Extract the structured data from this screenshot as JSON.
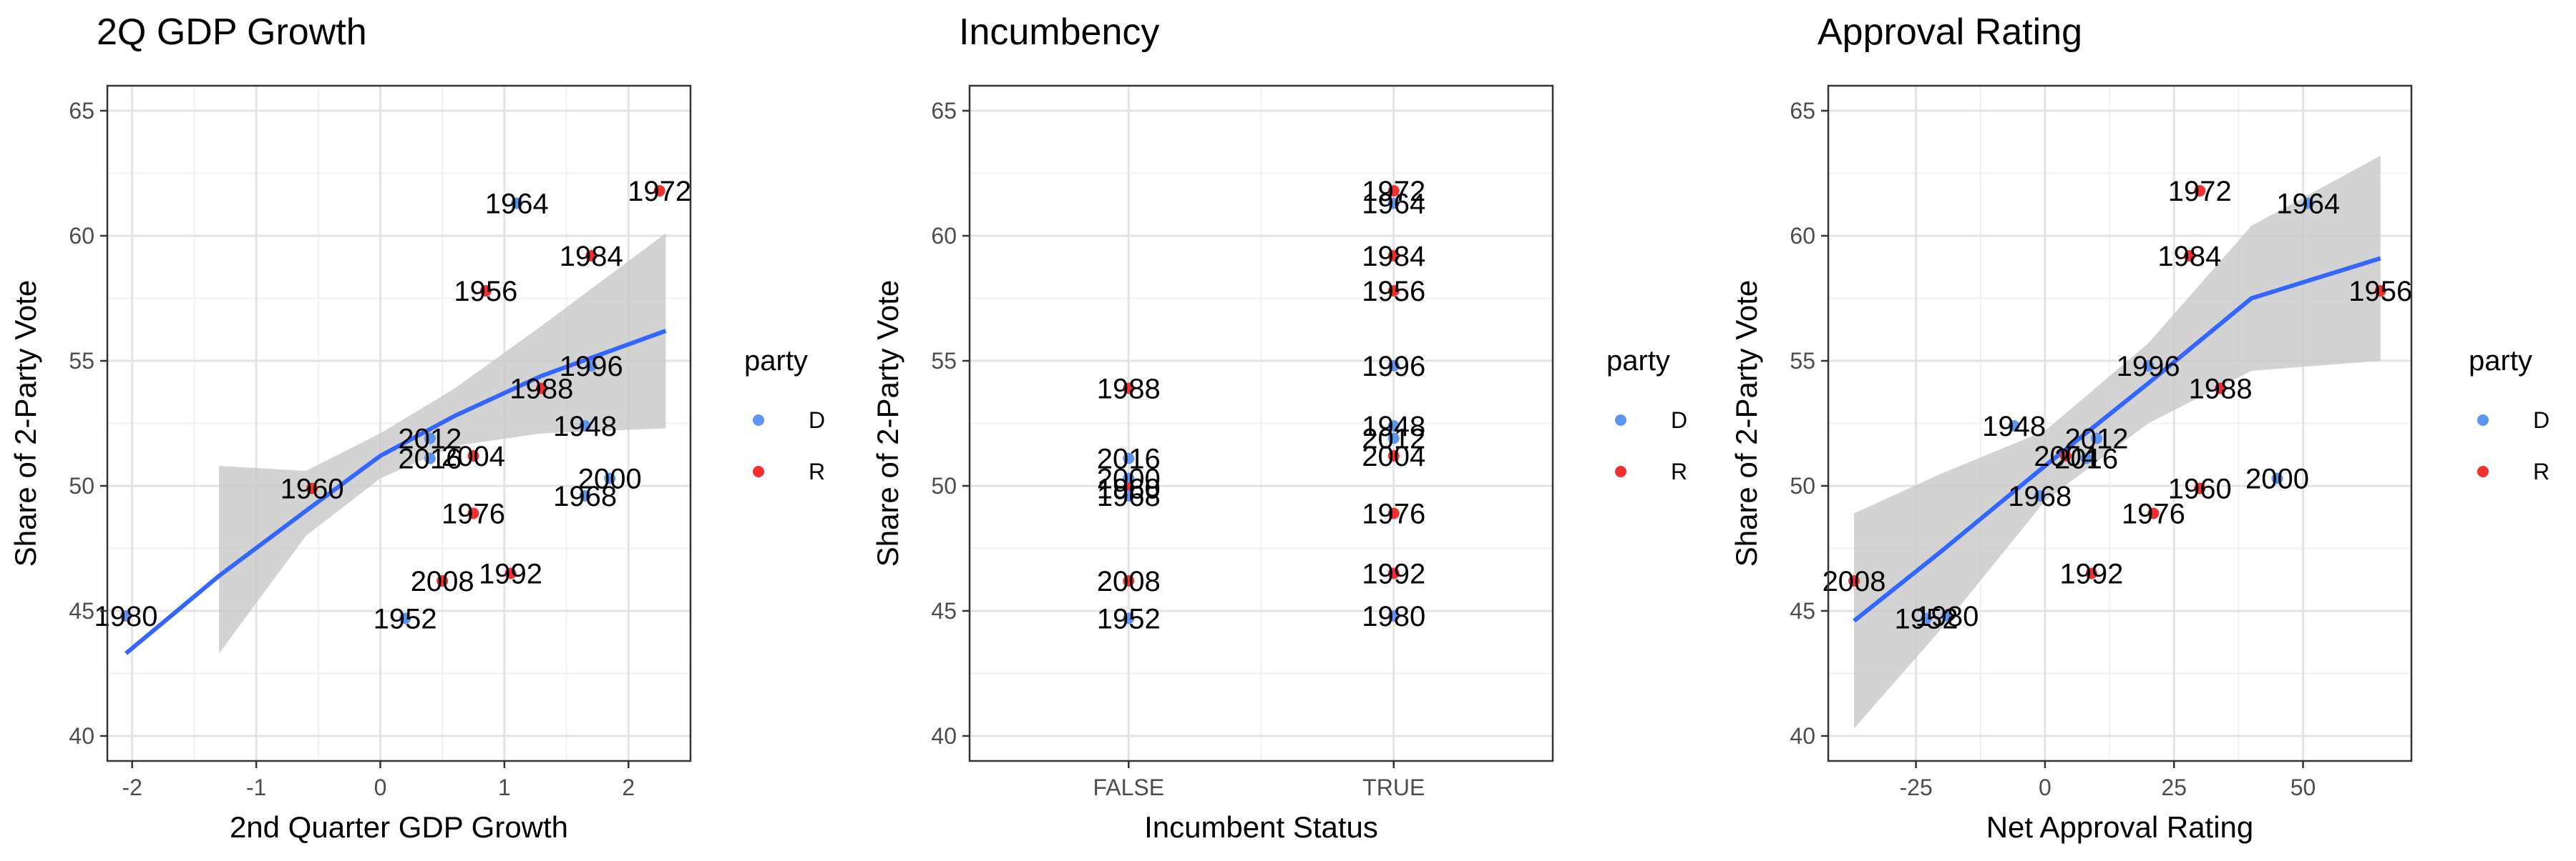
{
  "colors": {
    "D": "#5b95f0",
    "R": "#f23030",
    "fit": "#3366ff",
    "band": "#c8c8c8",
    "grid_major": "#e3e3e3",
    "grid_minor": "#f1f1f1"
  },
  "legend": {
    "title": "party",
    "items": [
      {
        "key": "D",
        "label": "D"
      },
      {
        "key": "R",
        "label": "R"
      }
    ]
  },
  "chart_data": [
    {
      "type": "scatter",
      "title": "2Q GDP Growth",
      "xlabel": "2nd Quarter GDP Growth",
      "ylabel": "Share of 2-Party Vote",
      "xlim": [
        -2.2,
        2.5
      ],
      "ylim": [
        39,
        66
      ],
      "xticks": [
        -2,
        -1,
        0,
        1,
        2
      ],
      "xtick_labels": [
        "-2",
        "-1",
        "0",
        "1",
        "2"
      ],
      "yticks": [
        40,
        45,
        50,
        55,
        60,
        65
      ],
      "ytick_labels": [
        "40",
        "45",
        "50",
        "55",
        "60",
        "65"
      ],
      "grid": true,
      "fit": {
        "x": [
          -2.05,
          -1.3,
          -0.6,
          0,
          0.6,
          1.3,
          2.3
        ],
        "y": [
          43.3,
          46.4,
          49.0,
          51.2,
          52.8,
          54.4,
          56.2
        ],
        "lo": [
          40.7,
          43.3,
          48.0,
          50.3,
          51.6,
          52.1,
          52.3
        ],
        "hi": [
          45.9,
          50.8,
          50.6,
          52.1,
          53.9,
          56.4,
          60.1
        ],
        "band_start": -1.3
      },
      "points": [
        {
          "label": "1980",
          "x": -2.05,
          "y": 44.8,
          "party": "D"
        },
        {
          "label": "1960",
          "x": -0.55,
          "y": 49.9,
          "party": "R"
        },
        {
          "label": "1952",
          "x": 0.2,
          "y": 44.7,
          "party": "D"
        },
        {
          "label": "2012",
          "x": 0.4,
          "y": 51.9,
          "party": "D"
        },
        {
          "label": "2016",
          "x": 0.4,
          "y": 51.1,
          "party": "D"
        },
        {
          "label": "2004",
          "x": 0.75,
          "y": 51.2,
          "party": "R"
        },
        {
          "label": "2008",
          "x": 0.5,
          "y": 46.2,
          "party": "R"
        },
        {
          "label": "1976",
          "x": 0.75,
          "y": 48.9,
          "party": "R"
        },
        {
          "label": "1956",
          "x": 0.85,
          "y": 57.8,
          "party": "R"
        },
        {
          "label": "1964",
          "x": 1.1,
          "y": 61.3,
          "party": "D"
        },
        {
          "label": "1992",
          "x": 1.05,
          "y": 46.5,
          "party": "R"
        },
        {
          "label": "1988",
          "x": 1.3,
          "y": 53.9,
          "party": "R"
        },
        {
          "label": "1948",
          "x": 1.65,
          "y": 52.4,
          "party": "D"
        },
        {
          "label": "1996",
          "x": 1.7,
          "y": 54.8,
          "party": "D"
        },
        {
          "label": "1968",
          "x": 1.65,
          "y": 49.6,
          "party": "D"
        },
        {
          "label": "1984",
          "x": 1.7,
          "y": 59.2,
          "party": "R"
        },
        {
          "label": "2000",
          "x": 1.85,
          "y": 50.3,
          "party": "D"
        },
        {
          "label": "1972",
          "x": 2.25,
          "y": 61.8,
          "party": "R"
        }
      ]
    },
    {
      "type": "scatter",
      "title": "Incumbency",
      "xlabel": "Incumbent Status",
      "ylabel": "Share of 2-Party Vote",
      "xlim": [
        0.4,
        2.6
      ],
      "ylim": [
        39,
        66
      ],
      "xticks": [
        1,
        2
      ],
      "xtick_labels": [
        "FALSE",
        "TRUE"
      ],
      "yticks": [
        40,
        45,
        50,
        55,
        60,
        65
      ],
      "ytick_labels": [
        "40",
        "45",
        "50",
        "55",
        "60",
        "65"
      ],
      "grid": true,
      "points": [
        {
          "label": "1988",
          "x": 1,
          "y": 53.9,
          "party": "R"
        },
        {
          "label": "2016",
          "x": 1,
          "y": 51.1,
          "party": "D"
        },
        {
          "label": "2000",
          "x": 1,
          "y": 50.3,
          "party": "D"
        },
        {
          "label": "1960",
          "x": 1,
          "y": 49.9,
          "party": "R"
        },
        {
          "label": "1968",
          "x": 1,
          "y": 49.6,
          "party": "D"
        },
        {
          "label": "2008",
          "x": 1,
          "y": 46.2,
          "party": "R"
        },
        {
          "label": "1952",
          "x": 1,
          "y": 44.7,
          "party": "D"
        },
        {
          "label": "1972",
          "x": 2,
          "y": 61.8,
          "party": "R"
        },
        {
          "label": "1964",
          "x": 2,
          "y": 61.3,
          "party": "D"
        },
        {
          "label": "1984",
          "x": 2,
          "y": 59.2,
          "party": "R"
        },
        {
          "label": "1956",
          "x": 2,
          "y": 57.8,
          "party": "R"
        },
        {
          "label": "1996",
          "x": 2,
          "y": 54.8,
          "party": "D"
        },
        {
          "label": "1948",
          "x": 2,
          "y": 52.4,
          "party": "D"
        },
        {
          "label": "2012",
          "x": 2,
          "y": 51.9,
          "party": "D"
        },
        {
          "label": "2004",
          "x": 2,
          "y": 51.2,
          "party": "R"
        },
        {
          "label": "1976",
          "x": 2,
          "y": 48.9,
          "party": "R"
        },
        {
          "label": "1992",
          "x": 2,
          "y": 46.5,
          "party": "R"
        },
        {
          "label": "1980",
          "x": 2,
          "y": 44.8,
          "party": "D"
        }
      ]
    },
    {
      "type": "scatter",
      "title": "Approval Rating",
      "xlabel": "Net Approval Rating",
      "ylabel": "Share of 2-Party Vote",
      "xlim": [
        -42,
        71
      ],
      "ylim": [
        39,
        66
      ],
      "xticks": [
        -25,
        0,
        25,
        50
      ],
      "xtick_labels": [
        "-25",
        "0",
        "25",
        "50"
      ],
      "yticks": [
        40,
        45,
        50,
        55,
        60,
        65
      ],
      "ytick_labels": [
        "40",
        "45",
        "50",
        "55",
        "60",
        "65"
      ],
      "grid": true,
      "fit": {
        "x": [
          -37,
          -20,
          0,
          20,
          40,
          65
        ],
        "y": [
          44.6,
          47.4,
          50.8,
          54.1,
          57.5,
          59.1
        ],
        "lo": [
          40.3,
          44.3,
          49.4,
          52.5,
          54.6,
          55.0
        ],
        "hi": [
          48.9,
          50.5,
          52.2,
          55.7,
          60.4,
          63.2
        ],
        "band_start": -37
      },
      "points": [
        {
          "label": "2008",
          "x": -37,
          "y": 46.2,
          "party": "R"
        },
        {
          "label": "1952",
          "x": -23,
          "y": 44.7,
          "party": "D"
        },
        {
          "label": "1980",
          "x": -19,
          "y": 44.8,
          "party": "D"
        },
        {
          "label": "1948",
          "x": -6,
          "y": 52.4,
          "party": "D"
        },
        {
          "label": "1968",
          "x": -1,
          "y": 49.6,
          "party": "D"
        },
        {
          "label": "2004",
          "x": 4,
          "y": 51.2,
          "party": "R"
        },
        {
          "label": "2012",
          "x": 10,
          "y": 51.9,
          "party": "D"
        },
        {
          "label": "2016",
          "x": 8,
          "y": 51.1,
          "party": "D"
        },
        {
          "label": "1992",
          "x": 9,
          "y": 46.5,
          "party": "R"
        },
        {
          "label": "1976",
          "x": 21,
          "y": 48.9,
          "party": "R"
        },
        {
          "label": "1996",
          "x": 20,
          "y": 54.8,
          "party": "D"
        },
        {
          "label": "1984",
          "x": 28,
          "y": 59.2,
          "party": "R"
        },
        {
          "label": "1972",
          "x": 30,
          "y": 61.8,
          "party": "R"
        },
        {
          "label": "1960",
          "x": 30,
          "y": 49.9,
          "party": "R"
        },
        {
          "label": "1988",
          "x": 34,
          "y": 53.9,
          "party": "R"
        },
        {
          "label": "2000",
          "x": 45,
          "y": 50.3,
          "party": "D"
        },
        {
          "label": "1964",
          "x": 51,
          "y": 61.3,
          "party": "D"
        },
        {
          "label": "1956",
          "x": 65,
          "y": 57.8,
          "party": "R"
        }
      ]
    }
  ]
}
